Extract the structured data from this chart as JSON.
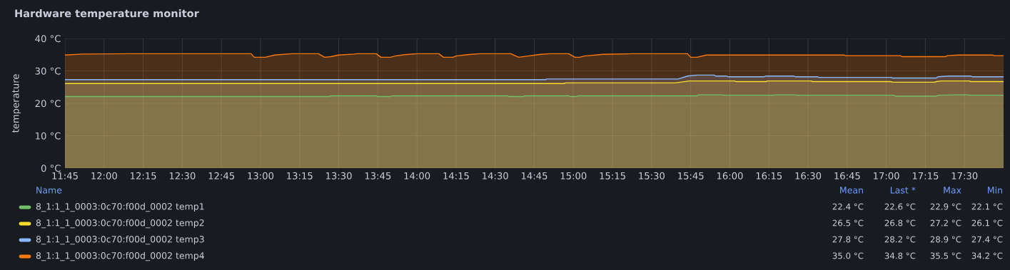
{
  "chart_data": {
    "type": "area",
    "title": "Hardware temperature monitor",
    "ylabel": "temperature",
    "xlim": [
      11.75,
      17.75
    ],
    "ylim": [
      0,
      40
    ],
    "xticks": [
      {
        "value": 11.75,
        "label": "11:45"
      },
      {
        "value": 12.0,
        "label": "12:00"
      },
      {
        "value": 12.25,
        "label": "12:15"
      },
      {
        "value": 12.5,
        "label": "12:30"
      },
      {
        "value": 12.75,
        "label": "12:45"
      },
      {
        "value": 13.0,
        "label": "13:00"
      },
      {
        "value": 13.25,
        "label": "13:15"
      },
      {
        "value": 13.5,
        "label": "13:30"
      },
      {
        "value": 13.75,
        "label": "13:45"
      },
      {
        "value": 14.0,
        "label": "14:00"
      },
      {
        "value": 14.25,
        "label": "14:15"
      },
      {
        "value": 14.5,
        "label": "14:30"
      },
      {
        "value": 14.75,
        "label": "14:45"
      },
      {
        "value": 15.0,
        "label": "15:00"
      },
      {
        "value": 15.25,
        "label": "15:15"
      },
      {
        "value": 15.5,
        "label": "15:30"
      },
      {
        "value": 15.75,
        "label": "15:45"
      },
      {
        "value": 16.0,
        "label": "16:00"
      },
      {
        "value": 16.25,
        "label": "16:15"
      },
      {
        "value": 16.5,
        "label": "16:30"
      },
      {
        "value": 16.75,
        "label": "16:45"
      },
      {
        "value": 17.0,
        "label": "17:00"
      },
      {
        "value": 17.25,
        "label": "17:15"
      },
      {
        "value": 17.5,
        "label": "17:30"
      }
    ],
    "yticks": [
      {
        "value": 0,
        "label": "0 °C"
      },
      {
        "value": 10,
        "label": "10 °C"
      },
      {
        "value": 20,
        "label": "20 °C"
      },
      {
        "value": 30,
        "label": "30 °C"
      },
      {
        "value": 40,
        "label": "40 °C"
      }
    ],
    "grid": true,
    "legend": "bottom",
    "series": [
      {
        "name": "8_1:1_1_0003:0c70:f00d_0002 temp1",
        "color": "#73bf69",
        "x": [
          11.75,
          13.44,
          13.45,
          13.74,
          13.75,
          13.83,
          13.84,
          14.58,
          14.59,
          14.68,
          14.69,
          14.97,
          14.98,
          15.02,
          15.03,
          15.79,
          15.8,
          15.95,
          15.96,
          16.28,
          16.29,
          16.42,
          16.43,
          17.05,
          17.06,
          17.32,
          17.33,
          17.46,
          17.52,
          17.53,
          17.75
        ],
        "values": [
          22.1,
          22.1,
          22.3,
          22.3,
          22.1,
          22.1,
          22.3,
          22.3,
          22.1,
          22.1,
          22.3,
          22.3,
          22.1,
          22.1,
          22.3,
          22.3,
          22.6,
          22.6,
          22.5,
          22.5,
          22.6,
          22.6,
          22.5,
          22.5,
          22.2,
          22.2,
          22.5,
          22.6,
          22.6,
          22.5,
          22.5
        ]
      },
      {
        "name": "8_1:1_1_0003:0c70:f00d_0002 temp2",
        "color": "#fade2a",
        "x": [
          11.75,
          14.94,
          14.95,
          15.65,
          15.74,
          16.03,
          16.04,
          16.23,
          16.24,
          16.52,
          16.53,
          17.03,
          17.04,
          17.31,
          17.32,
          17.35,
          17.53,
          17.54,
          17.75
        ],
        "values": [
          26.1,
          26.1,
          26.3,
          26.3,
          26.9,
          26.9,
          26.7,
          26.7,
          26.9,
          26.9,
          26.7,
          26.7,
          26.5,
          26.5,
          26.7,
          26.9,
          26.9,
          26.7,
          26.7
        ]
      },
      {
        "name": "8_1:1_1_0003:0c70:f00d_0002 temp3",
        "color": "#8ab8ff",
        "x": [
          11.75,
          14.82,
          14.83,
          15.67,
          15.73,
          15.79,
          15.9,
          15.91,
          15.98,
          15.99,
          16.22,
          16.23,
          16.41,
          16.42,
          16.56,
          16.57,
          17.03,
          17.04,
          17.32,
          17.33,
          17.4,
          17.54,
          17.55,
          17.75
        ],
        "values": [
          27.3,
          27.3,
          27.5,
          27.5,
          28.4,
          28.7,
          28.7,
          28.4,
          28.4,
          28.2,
          28.2,
          28.4,
          28.4,
          28.2,
          28.2,
          28.0,
          28.0,
          27.8,
          27.8,
          28.2,
          28.4,
          28.4,
          28.2,
          28.2
        ]
      },
      {
        "name": "8_1:1_1_0003:0c70:f00d_0002 temp4",
        "color": "#ff780a",
        "x": [
          11.75,
          11.86,
          12.16,
          12.94,
          12.96,
          13.03,
          13.09,
          13.2,
          13.37,
          13.41,
          13.45,
          13.5,
          13.6,
          13.62,
          13.74,
          13.77,
          13.83,
          13.86,
          13.92,
          14.0,
          14.14,
          14.17,
          14.23,
          14.25,
          14.32,
          14.4,
          14.6,
          14.65,
          14.71,
          14.79,
          14.85,
          14.97,
          15.01,
          15.04,
          15.07,
          15.19,
          15.39,
          15.73,
          15.75,
          15.79,
          15.85,
          16.73,
          16.74,
          17.09,
          17.1,
          17.38,
          17.39,
          17.46,
          17.68,
          17.69,
          17.75
        ],
        "values": [
          34.9,
          35.2,
          35.3,
          35.3,
          34.2,
          34.2,
          34.9,
          35.3,
          35.3,
          34.2,
          34.4,
          34.9,
          35.2,
          35.3,
          35.3,
          34.2,
          34.2,
          34.6,
          35.0,
          35.3,
          35.3,
          34.2,
          34.2,
          34.6,
          35.0,
          35.3,
          35.3,
          34.2,
          34.6,
          35.1,
          35.3,
          35.3,
          34.2,
          34.2,
          34.6,
          35.1,
          35.3,
          35.3,
          34.2,
          34.2,
          34.9,
          34.9,
          34.7,
          34.7,
          34.4,
          34.4,
          34.7,
          34.9,
          34.9,
          34.7,
          34.7
        ]
      }
    ],
    "annotations": [
      "Name",
      "Mean",
      "Last *",
      "Max",
      "Min",
      "22.4 °C",
      "22.6 °C",
      "22.9 °C",
      "22.1 °C",
      "26.5 °C",
      "26.8 °C",
      "27.2 °C",
      "26.1 °C",
      "27.8 °C",
      "28.2 °C",
      "28.9 °C",
      "27.4 °C",
      "35.0 °C",
      "34.8 °C",
      "35.5 °C",
      "34.2 °C"
    ]
  }
}
